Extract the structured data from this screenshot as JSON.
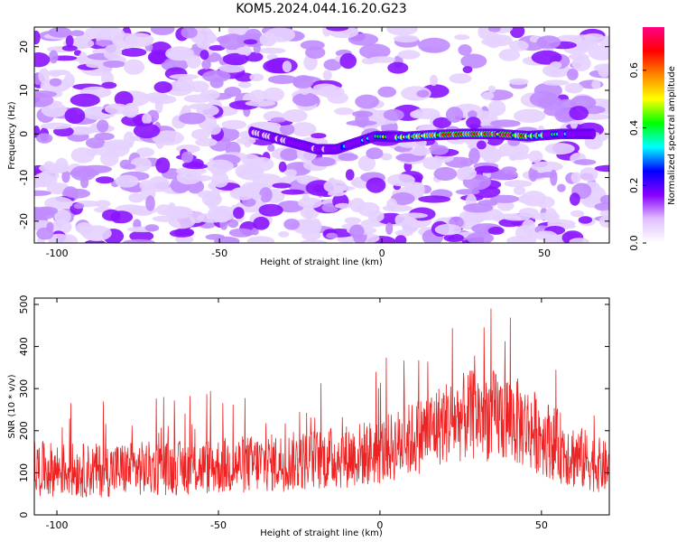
{
  "title": "KOM5.2024.044.16.20.G23",
  "chart_data": [
    {
      "type": "heatmap",
      "xlabel": "Height of straight line (km)",
      "ylabel": "Frequency (Hz)",
      "xlim": [
        -107,
        70
      ],
      "ylim": [
        -25,
        24.5
      ],
      "xticks": [
        -100,
        -50,
        0,
        50
      ],
      "yticks": [
        -20,
        -10,
        0,
        10,
        20
      ],
      "colorbar": {
        "label": "Normalized spectral amplitude",
        "range": [
          0.0,
          0.75
        ],
        "ticks": [
          "0.0",
          "0.2",
          "0.4",
          "0.6"
        ],
        "colors": [
          "#ffffff",
          "#e0c0ff",
          "#8800ff",
          "#0000ff",
          "#00ffff",
          "#00ff00",
          "#ffff00",
          "#ff8800",
          "#ff0000",
          "#ff0088"
        ]
      },
      "signal_track": {
        "x": [
          -40,
          -30,
          -20,
          -14,
          -8,
          -2,
          5,
          15,
          25,
          35,
          45,
          55,
          65
        ],
        "frequency": [
          0.5,
          -1.5,
          -3.5,
          -3.5,
          -2,
          -0.5,
          -0.8,
          -0.3,
          0,
          0,
          -0.5,
          0,
          0
        ],
        "peak_amplitude": [
          0.2,
          0.25,
          0.25,
          0.3,
          0.35,
          0.4,
          0.45,
          0.6,
          0.65,
          0.7,
          0.55,
          0.4,
          0.3
        ]
      }
    },
    {
      "type": "line",
      "xlabel": "Height of straight line (km)",
      "ylabel": "SNR (10 * v/v)",
      "xlim": [
        -107,
        71
      ],
      "ylim": [
        0,
        515
      ],
      "xticks": [
        -100,
        -50,
        0,
        50
      ],
      "yticks": [
        0,
        100,
        200,
        300,
        400,
        500
      ],
      "color": "#ee2222",
      "series": [
        {
          "envelope_x": [
            -107,
            -90,
            -75,
            -60,
            -45,
            -30,
            -15,
            0,
            10,
            20,
            30,
            40,
            50,
            60,
            71
          ],
          "mean_y": [
            110,
            105,
            110,
            112,
            118,
            125,
            135,
            150,
            180,
            220,
            240,
            230,
            190,
            140,
            110
          ],
          "spread_y": [
            65,
            65,
            65,
            65,
            70,
            70,
            75,
            80,
            90,
            100,
            110,
            110,
            95,
            80,
            60
          ]
        }
      ]
    }
  ]
}
